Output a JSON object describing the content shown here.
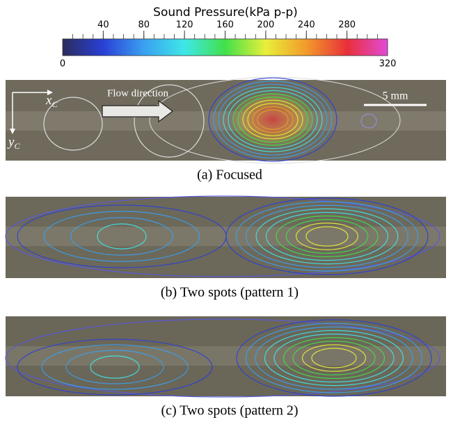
{
  "colorbar": {
    "title": "Sound Pressure(kPa p-p)",
    "range": [
      0,
      320
    ],
    "ticks": [
      40,
      80,
      120,
      160,
      200,
      240,
      280
    ],
    "minor_step": 10,
    "colors": [
      "#2b2d5c",
      "#2a3fd6",
      "#3aa0f0",
      "#3ee7e8",
      "#42e04a",
      "#e8ef3a",
      "#f29a2a",
      "#e8303a",
      "#e24ad8"
    ]
  },
  "panels": [
    {
      "caption": "(a) Focused",
      "annotations": {
        "flow": "Flow direction",
        "scale": "5 mm",
        "x_axis": {
          "main": "x",
          "sub": "C"
        },
        "y_axis": {
          "main": "y",
          "sub": "C"
        }
      }
    },
    {
      "caption": "(b) Two spots (pattern 1)"
    },
    {
      "caption": "(c) Two spots (pattern 2)"
    }
  ]
}
